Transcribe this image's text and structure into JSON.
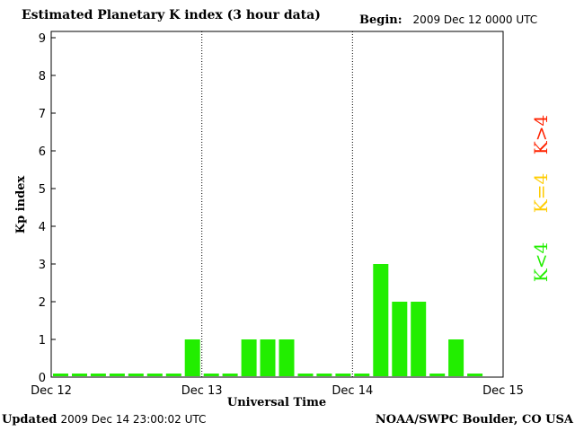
{
  "header": {
    "title": "Estimated Planetary K index (3 hour data)",
    "begin_label": "Begin:",
    "begin_value": "2009 Dec 12 0000 UTC"
  },
  "footer": {
    "updated_label": "Updated",
    "updated_value": "2009 Dec 14 23:00:02 UTC",
    "credit": "NOAA/SWPC Boulder, CO USA"
  },
  "legend": {
    "high": "K>4",
    "equal": "K=4",
    "low": "K<4",
    "high_color": "#ff2200",
    "equal_color": "#ffcc00",
    "low_color": "#22ee00"
  },
  "chart_data": {
    "type": "bar",
    "title": "Estimated Planetary K index (3 hour data)",
    "xlabel": "Universal Time",
    "ylabel": "Kp index",
    "ylim": [
      0,
      9
    ],
    "yticks": [
      0,
      1,
      2,
      3,
      4,
      5,
      6,
      7,
      8,
      9
    ],
    "x_tick_labels": [
      "Dec 12",
      "Dec 13",
      "Dec 14",
      "Dec 15"
    ],
    "day_dividers": [
      "Dec 13",
      "Dec 14"
    ],
    "interval_hours": 3,
    "bar_color": "#22ee00",
    "values": [
      0,
      0,
      0,
      0,
      0,
      0,
      0,
      1,
      0,
      0,
      1,
      1,
      1,
      0,
      0,
      0,
      0,
      3,
      2,
      2,
      0,
      1,
      0
    ]
  }
}
